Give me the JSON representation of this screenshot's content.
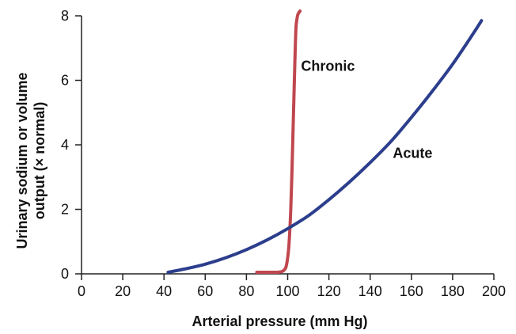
{
  "chart_data": {
    "type": "line",
    "xlabel": "Arterial pressure (mm Hg)",
    "ylabel_lines": [
      "Urinary sodium or volume",
      "output (× normal)"
    ],
    "xlim": [
      0,
      200
    ],
    "ylim": [
      0,
      8
    ],
    "xticks": [
      0,
      20,
      40,
      60,
      80,
      100,
      120,
      140,
      160,
      180,
      200
    ],
    "yticks": [
      0,
      2,
      4,
      6,
      8
    ],
    "grid": false,
    "series": [
      {
        "name": "Chronic",
        "color": "#c0474f",
        "x": [
          85,
          90,
          95,
          97,
          98,
          99,
          99.5,
          100,
          100.5,
          101,
          101.5,
          102,
          102.5,
          103,
          103.5,
          104,
          104.5,
          105,
          106
        ],
        "y": [
          0.05,
          0.05,
          0.05,
          0.07,
          0.1,
          0.18,
          0.3,
          0.5,
          0.8,
          1.3,
          2.0,
          3.0,
          4.2,
          5.4,
          6.6,
          7.6,
          7.9,
          8.05,
          8.15
        ]
      },
      {
        "name": "Acute",
        "color": "#2c3e8c",
        "x": [
          42,
          50,
          60,
          70,
          80,
          90,
          100,
          110,
          120,
          130,
          140,
          150,
          160,
          170,
          180,
          190,
          194
        ],
        "y": [
          0.05,
          0.15,
          0.3,
          0.5,
          0.75,
          1.05,
          1.4,
          1.8,
          2.3,
          2.85,
          3.45,
          4.1,
          4.85,
          5.65,
          6.5,
          7.45,
          7.85
        ]
      }
    ],
    "annotations": [
      {
        "text": "Chronic",
        "x": 106.5,
        "y": 6.3
      },
      {
        "text": "Acute",
        "x": 151,
        "y": 3.6
      }
    ]
  }
}
